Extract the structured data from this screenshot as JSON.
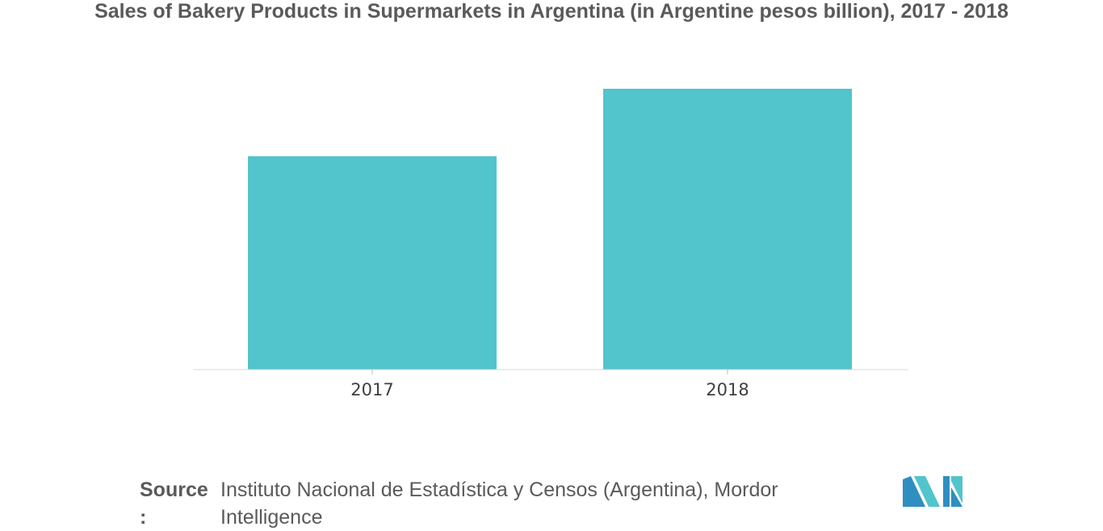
{
  "chart_data": {
    "type": "bar",
    "title": "Sales of Bakery Products in Supermarkets in Argentina (in Argentine pesos billion), 2017 - 2018",
    "categories": [
      "2017",
      "2018"
    ],
    "values": [
      7.6,
      10.0
    ],
    "xlabel": "",
    "ylabel": "",
    "ylim": [
      0,
      10
    ],
    "grid": false,
    "legend": "none",
    "bar_color": "#52c4cb"
  },
  "source": {
    "label": "Source :",
    "text": "Instituto Nacional de Estadística y Censos (Argentina), Mordor Intelligence"
  },
  "logo": {
    "icon": "mordor-intelligence-logo-icon",
    "colors": [
      "#2e8fc0",
      "#52c4cb"
    ]
  }
}
